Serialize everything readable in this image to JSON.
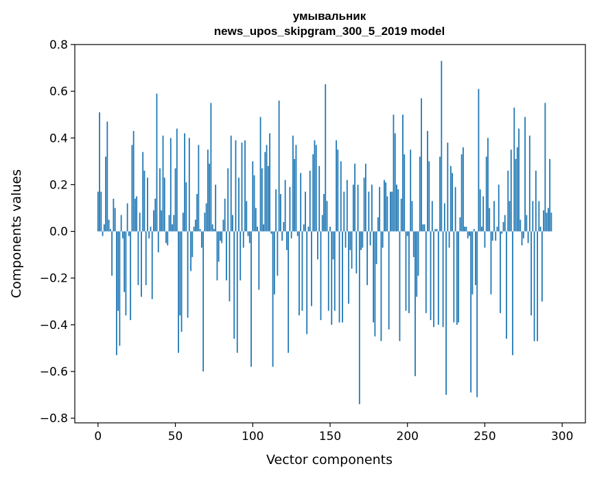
{
  "chart_data": {
    "type": "bar",
    "title_line1": "умывальник",
    "title_line2": "news_upos_skipgram_300_5_2019 model",
    "xlabel": "Vector components",
    "ylabel": "Components values",
    "xlim": [
      -15,
      315
    ],
    "ylim": [
      -0.82,
      0.8
    ],
    "xticks": [
      0,
      50,
      100,
      150,
      200,
      250,
      300
    ],
    "xtick_labels": [
      "0",
      "50",
      "100",
      "150",
      "200",
      "250",
      "300"
    ],
    "yticks": [
      -0.8,
      -0.6,
      -0.4,
      -0.2,
      0.0,
      0.2,
      0.4,
      0.6,
      0.8
    ],
    "ytick_labels": [
      "−0.8",
      "−0.6",
      "−0.4",
      "−0.2",
      "0.0",
      "0.2",
      "0.4",
      "0.6",
      "0.8"
    ],
    "bar_color": "#1f77b4",
    "values": [
      0.17,
      0.51,
      0.17,
      -0.02,
      0.03,
      0.32,
      0.47,
      0.05,
      0.01,
      -0.19,
      0.14,
      0.1,
      -0.53,
      -0.34,
      -0.49,
      0.07,
      -0.03,
      -0.26,
      -0.36,
      0.12,
      -0.02,
      -0.38,
      0.37,
      0.43,
      0.14,
      0.15,
      -0.23,
      0.08,
      -0.28,
      0.34,
      0.26,
      -0.23,
      0.23,
      -0.03,
      0.02,
      -0.29,
      0.09,
      0.14,
      0.59,
      -0.09,
      0.27,
      0.09,
      0.41,
      0.23,
      -0.05,
      -0.06,
      0.07,
      0.4,
      0.03,
      0.07,
      0.27,
      0.44,
      -0.52,
      -0.36,
      -0.43,
      0.08,
      0.42,
      0.21,
      -0.37,
      0.4,
      -0.17,
      -0.11,
      0.02,
      0.05,
      0.16,
      0.37,
      0.01,
      -0.07,
      -0.6,
      0.08,
      0.12,
      0.35,
      0.29,
      0.55,
      0.03,
      0.01,
      0.2,
      -0.21,
      -0.13,
      -0.04,
      -0.05,
      0.05,
      0.14,
      -0.21,
      0.27,
      -0.3,
      0.41,
      0.07,
      -0.46,
      0.39,
      -0.52,
      0.23,
      -0.21,
      0.38,
      -0.07,
      0.39,
      0.13,
      -0.02,
      -0.05,
      -0.58,
      0.3,
      0.24,
      0.1,
      0.02,
      -0.25,
      0.49,
      0.27,
      0.03,
      0.34,
      0.37,
      0.28,
      0.42,
      -0.01,
      -0.58,
      -0.27,
      0.18,
      -0.19,
      0.56,
      0.16,
      -0.04,
      0.04,
      0.22,
      -0.08,
      -0.52,
      0.19,
      -0.03,
      0.41,
      0.31,
      0.37,
      -0.02,
      -0.36,
      0.25,
      -0.34,
      0.03,
      0.17,
      -0.44,
      0.02,
      0.26,
      -0.32,
      0.33,
      0.39,
      0.37,
      -0.12,
      0.28,
      -0.38,
      0.07,
      0.16,
      0.63,
      0.13,
      -0.34,
      0.02,
      -0.4,
      -0.12,
      -0.34,
      0.39,
      0.35,
      -0.39,
      0.3,
      -0.39,
      0.17,
      -0.07,
      0.22,
      -0.31,
      -0.08,
      -0.16,
      0.2,
      0.29,
      -0.18,
      0.2,
      -0.74,
      -0.08,
      -0.07,
      0.23,
      0.29,
      -0.23,
      0.17,
      -0.06,
      0.2,
      -0.39,
      -0.45,
      -0.14,
      0.06,
      0.19,
      -0.47,
      -0.07,
      0.22,
      0.21,
      0.15,
      -0.42,
      0.17,
      0.17,
      0.5,
      0.42,
      0.2,
      0.18,
      -0.47,
      0.14,
      0.5,
      0.33,
      -0.34,
      -0.02,
      -0.35,
      0.35,
      0.13,
      -0.11,
      -0.62,
      -0.28,
      -0.19,
      0.32,
      0.57,
      0.03,
      0.03,
      -0.35,
      0.43,
      0.3,
      -0.38,
      0.13,
      -0.41,
      0.01,
      0.01,
      -0.4,
      0.32,
      0.73,
      -0.41,
      0.12,
      -0.7,
      0.38,
      -0.07,
      0.28,
      0.25,
      -0.39,
      0.19,
      -0.4,
      -0.39,
      0.06,
      0.33,
      0.36,
      0.02,
      0.02,
      -0.03,
      -0.02,
      -0.69,
      -0.27,
      0.01,
      -0.23,
      -0.71,
      0.61,
      0.18,
      0.02,
      0.15,
      -0.07,
      0.32,
      0.4,
      0.1,
      -0.27,
      -0.04,
      0.13,
      -0.04,
      0.02,
      0.2,
      -0.35,
      -0.01,
      0.04,
      0.07,
      -0.46,
      0.26,
      0.13,
      0.35,
      -0.53,
      0.53,
      0.31,
      0.36,
      0.44,
      0.05,
      -0.06,
      -0.03,
      0.49,
      0.07,
      -0.05,
      0.41,
      -0.36,
      0.13,
      -0.47,
      0.26,
      -0.47,
      0.13,
      0.02,
      -0.3,
      0.09,
      0.55,
      0.08,
      0.1,
      0.31,
      0.08
    ]
  }
}
